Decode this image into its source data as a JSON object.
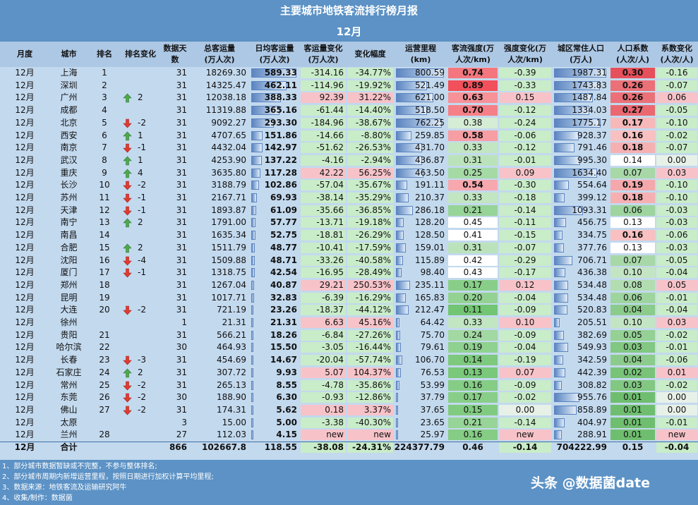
{
  "title": "主要城市地铁客流排行榜月报",
  "subtitle": "12月",
  "headers": [
    "月度",
    "城市",
    "排名",
    "排名变化",
    "数据天数",
    "总客运量\n(万人次)",
    "日均客运量\n(万人次)",
    "客运量变化\n(万人次)",
    "变化幅度",
    "运营里程\n(km)",
    "客流强度(万\n人次/km)",
    "强度变化(万\n人次/km)",
    "城区常住人口\n(万人)",
    "人口系数\n(人次/人)",
    "系数变化\n(人次/人)"
  ],
  "rows": [
    [
      "12月",
      "上海",
      "1",
      "",
      "31",
      "18269.30",
      "589.33",
      "-314.16",
      "-34.77%",
      "800.59",
      "0.74",
      "-0.39",
      "1987.31",
      "0.30",
      "-0.16"
    ],
    [
      "12月",
      "深圳",
      "2",
      "",
      "31",
      "14325.47",
      "462.11",
      "-114.96",
      "-19.92%",
      "521.49",
      "0.89",
      "-0.33",
      "1743.83",
      "0.26",
      "-0.07"
    ],
    [
      "12月",
      "广州",
      "3",
      "2",
      "31",
      "12038.18",
      "388.33",
      "92.39",
      "31.22%",
      "621.00",
      "0.63",
      "0.15",
      "1487.84",
      "0.26",
      "0.06"
    ],
    [
      "12月",
      "成都",
      "4",
      "",
      "31",
      "11319.88",
      "365.16",
      "-61.44",
      "-14.40%",
      "518.50",
      "0.70",
      "-0.12",
      "1334.03",
      "0.27",
      "-0.05"
    ],
    [
      "12月",
      "北京",
      "5",
      "-2",
      "31",
      "9092.27",
      "293.30",
      "-184.96",
      "-38.67%",
      "762.25",
      "0.38",
      "-0.24",
      "1775.17",
      "0.17",
      "-0.10"
    ],
    [
      "12月",
      "西安",
      "6",
      "1",
      "31",
      "4707.65",
      "151.86",
      "-14.66",
      "-8.80%",
      "259.85",
      "0.58",
      "-0.06",
      "928.37",
      "0.16",
      "-0.02"
    ],
    [
      "12月",
      "南京",
      "7",
      "-1",
      "31",
      "4432.04",
      "142.97",
      "-51.62",
      "-26.53%",
      "431.70",
      "0.33",
      "-0.12",
      "791.46",
      "0.18",
      "-0.07"
    ],
    [
      "12月",
      "武汉",
      "8",
      "1",
      "31",
      "4253.90",
      "137.22",
      "-4.16",
      "-2.94%",
      "436.87",
      "0.31",
      "-0.01",
      "995.30",
      "0.14",
      "0.00"
    ],
    [
      "12月",
      "重庆",
      "9",
      "4",
      "31",
      "3635.80",
      "117.28",
      "42.22",
      "56.25%",
      "463.50",
      "0.25",
      "0.09",
      "1634.40",
      "0.07",
      "0.03"
    ],
    [
      "12月",
      "长沙",
      "10",
      "-2",
      "31",
      "3188.79",
      "102.86",
      "-57.04",
      "-35.67%",
      "191.11",
      "0.54",
      "-0.30",
      "554.64",
      "0.19",
      "-0.10"
    ],
    [
      "12月",
      "苏州",
      "11",
      "-1",
      "31",
      "2167.71",
      "69.93",
      "-38.14",
      "-35.29%",
      "210.37",
      "0.33",
      "-0.18",
      "399.12",
      "0.18",
      "-0.10"
    ],
    [
      "12月",
      "天津",
      "12",
      "-1",
      "31",
      "1893.87",
      "61.09",
      "-35.66",
      "-36.85%",
      "286.18",
      "0.21",
      "-0.14",
      "1093.31",
      "0.06",
      "-0.03"
    ],
    [
      "12月",
      "南宁",
      "13",
      "2",
      "31",
      "1791.00",
      "57.77",
      "-13.71",
      "-19.18%",
      "128.20",
      "0.45",
      "-0.11",
      "456.75",
      "0.13",
      "-0.03"
    ],
    [
      "12月",
      "南昌",
      "14",
      "",
      "31",
      "1635.34",
      "52.75",
      "-18.81",
      "-26.29%",
      "128.50",
      "0.41",
      "-0.15",
      "334.75",
      "0.16",
      "-0.06"
    ],
    [
      "12月",
      "合肥",
      "15",
      "2",
      "31",
      "1511.79",
      "48.77",
      "-10.41",
      "-17.59%",
      "159.01",
      "0.31",
      "-0.07",
      "377.76",
      "0.13",
      "-0.03"
    ],
    [
      "12月",
      "沈阳",
      "16",
      "-4",
      "31",
      "1509.88",
      "48.71",
      "-33.26",
      "-40.58%",
      "115.89",
      "0.42",
      "-0.29",
      "706.71",
      "0.07",
      "-0.05"
    ],
    [
      "12月",
      "厦门",
      "17",
      "-1",
      "31",
      "1318.75",
      "42.54",
      "-16.95",
      "-28.49%",
      "98.40",
      "0.43",
      "-0.17",
      "436.38",
      "0.10",
      "-0.04"
    ],
    [
      "12月",
      "郑州",
      "18",
      "",
      "31",
      "1267.04",
      "40.87",
      "29.21",
      "250.53%",
      "235.11",
      "0.17",
      "0.12",
      "534.48",
      "0.08",
      "0.05"
    ],
    [
      "12月",
      "昆明",
      "19",
      "",
      "31",
      "1017.71",
      "32.83",
      "-6.39",
      "-16.29%",
      "165.83",
      "0.20",
      "-0.04",
      "534.48",
      "0.06",
      "-0.01"
    ],
    [
      "12月",
      "大连",
      "20",
      "-2",
      "31",
      "721.19",
      "23.26",
      "-18.37",
      "-44.12%",
      "212.47",
      "0.11",
      "-0.09",
      "520.83",
      "0.04",
      "-0.04"
    ],
    [
      "12月",
      "徐州",
      "",
      "",
      "1",
      "21.31",
      "21.31",
      "6.63",
      "45.16%",
      "64.42",
      "0.33",
      "0.10",
      "205.51",
      "0.10",
      "0.03"
    ],
    [
      "12月",
      "贵阳",
      "21",
      "",
      "31",
      "566.21",
      "18.26",
      "-6.84",
      "-27.26%",
      "75.70",
      "0.24",
      "-0.09",
      "382.69",
      "0.05",
      "-0.02"
    ],
    [
      "12月",
      "哈尔滨",
      "22",
      "",
      "30",
      "464.93",
      "15.50",
      "-3.05",
      "-16.44%",
      "79.61",
      "0.19",
      "-0.04",
      "549.93",
      "0.03",
      "-0.01"
    ],
    [
      "12月",
      "长春",
      "23",
      "-3",
      "31",
      "454.69",
      "14.67",
      "-20.04",
      "-57.74%",
      "106.70",
      "0.14",
      "-0.19",
      "342.59",
      "0.04",
      "-0.06"
    ],
    [
      "12月",
      "石家庄",
      "24",
      "2",
      "31",
      "307.72",
      "9.93",
      "5.07",
      "104.37%",
      "76.53",
      "0.13",
      "0.07",
      "442.39",
      "0.02",
      "0.01"
    ],
    [
      "12月",
      "常州",
      "25",
      "-2",
      "31",
      "265.13",
      "8.55",
      "-4.78",
      "-35.86%",
      "53.99",
      "0.16",
      "-0.09",
      "308.82",
      "0.03",
      "-0.02"
    ],
    [
      "12月",
      "东莞",
      "26",
      "-2",
      "30",
      "188.90",
      "6.30",
      "-0.93",
      "-12.86%",
      "37.79",
      "0.17",
      "-0.02",
      "955.76",
      "0.01",
      "0.00"
    ],
    [
      "12月",
      "佛山",
      "27",
      "-2",
      "31",
      "174.31",
      "5.62",
      "0.18",
      "3.37%",
      "37.65",
      "0.15",
      "0.00",
      "858.89",
      "0.01",
      "0.00"
    ],
    [
      "12月",
      "太原",
      "",
      "",
      "3",
      "15.00",
      "5.00",
      "-3.38",
      "-40.30%",
      "23.65",
      "0.21",
      "-0.14",
      "404.97",
      "0.01",
      "-0.01"
    ],
    [
      "12月",
      "兰州",
      "28",
      "",
      "27",
      "112.03",
      "4.15",
      "new",
      "new",
      "25.97",
      "0.16",
      "new",
      "288.91",
      "0.01",
      "new"
    ]
  ],
  "total": [
    "12月",
    "合计",
    "",
    "",
    "866",
    "102667.8",
    "118.55",
    "-38.08",
    "-24.31%",
    "224377.79",
    "0.46",
    "-0.14",
    "704222.99",
    "0.15",
    "-0.04"
  ],
  "notes": [
    "1、部分城市数据暂缺或不完整，不参与整体排名;",
    "2、部分城市周期内新增运营里程，按照日期进行加权计算平均里程;",
    "3、数据来源：地铁客流及运输研究阿牛",
    "4、收集/制作：数据菌"
  ],
  "watermark": "头条 @数据菌date",
  "colors": {
    "header_bg": "#5c92c5",
    "negative": "#c9ecc9",
    "positive": "#f7c3c9",
    "bar": "#5b84c0",
    "arrow_up": "#4fa84e",
    "arrow_down": "#e03b2f"
  }
}
